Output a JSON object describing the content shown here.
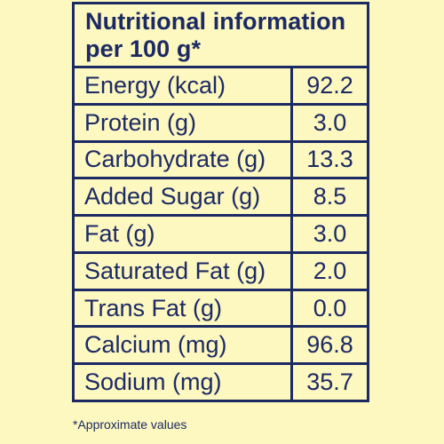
{
  "title": {
    "line1": "Nutritional information",
    "line2": "per 100 g*"
  },
  "rows": [
    {
      "label": "Energy (kcal)",
      "value": "92.2"
    },
    {
      "label": "Protein (g)",
      "value": "3.0"
    },
    {
      "label": "Carbohydrate (g)",
      "value": "13.3"
    },
    {
      "label": "Added Sugar (g)",
      "value": "8.5"
    },
    {
      "label": "Fat (g)",
      "value": "3.0"
    },
    {
      "label": "Saturated Fat (g)",
      "value": "2.0"
    },
    {
      "label": "Trans Fat (g)",
      "value": "0.0"
    },
    {
      "label": "Calcium (mg)",
      "value": "96.8"
    },
    {
      "label": "Sodium (mg)",
      "value": "35.7"
    }
  ],
  "footnote": "*Approximate values",
  "colors": {
    "background": "#fdf7c0",
    "ink": "#1c2a63"
  }
}
